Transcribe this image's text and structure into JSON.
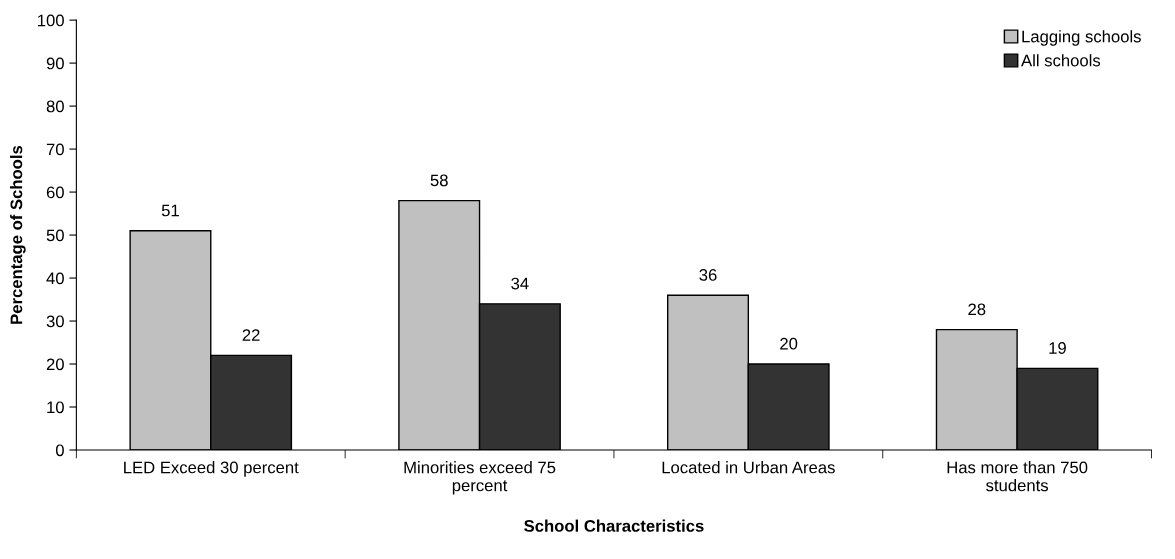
{
  "chart_data": {
    "type": "bar",
    "xlabel": "School Characteristics",
    "ylabel": "Percentage of Schools",
    "categories": [
      "LED Exceed 30 percent",
      "Minorities exceed 75 percent",
      "Located in Urban Areas",
      "Has more than 750 students"
    ],
    "series": [
      {
        "name": "Lagging schools",
        "color": "#c0c0c0",
        "values": [
          51,
          58,
          36,
          28
        ]
      },
      {
        "name": "All schools",
        "color": "#333333",
        "values": [
          22,
          34,
          20,
          19
        ]
      }
    ],
    "ylim": [
      0,
      100
    ],
    "yticks": [
      0,
      10,
      20,
      30,
      40,
      50,
      60,
      70,
      80,
      90,
      100
    ],
    "data_labels": true,
    "grid": false,
    "legend": "top right"
  }
}
